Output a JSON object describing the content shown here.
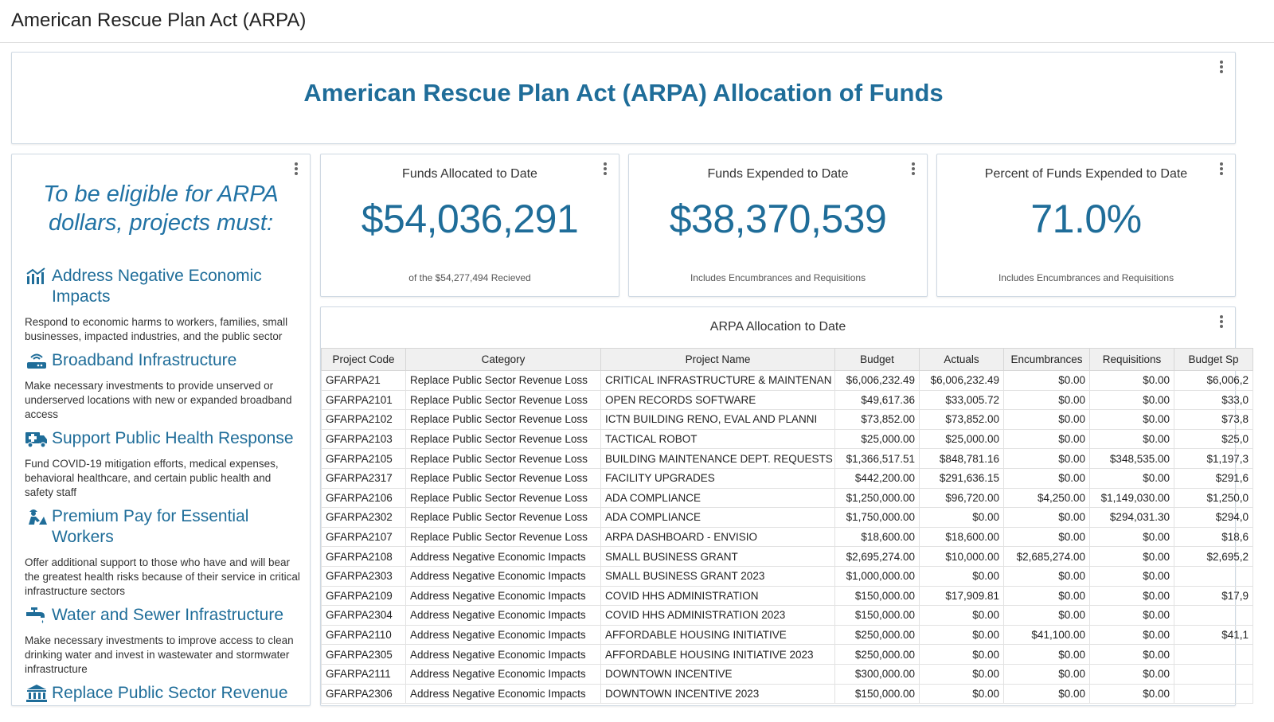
{
  "app_title": "American Rescue Plan Act (ARPA)",
  "banner": {
    "title": "American Rescue Plan Act (ARPA) Allocation of Funds"
  },
  "eligibility": {
    "heading": "To be eligible for ARPA dollars, projects must:",
    "items": [
      {
        "icon": "chart-bars-icon",
        "title": "Address Negative Economic Impacts",
        "desc": "Respond to economic harms to workers, families, small businesses, impacted industries, and the public sector"
      },
      {
        "icon": "router-icon",
        "title": "Broadband Infrastructure",
        "desc": "Make necessary investments to provide unserved or underserved locations with new or expanded broadband access"
      },
      {
        "icon": "ambulance-icon",
        "title": "Support Public Health Response",
        "desc": "Fund COVID-19 mitigation efforts, medical expenses, behavioral healthcare, and certain public health and safety staff"
      },
      {
        "icon": "worker-icon",
        "title": "Premium Pay for Essential Workers",
        "desc": "Offer additional support to those who have and will bear the greatest health risks because of their service in critical infrastructure sectors"
      },
      {
        "icon": "faucet-icon",
        "title": "Water and Sewer Infrastructure",
        "desc": "Make necessary investments to improve access to clean drinking water and invest in wastewater and stormwater infrastructure"
      },
      {
        "icon": "government-building-icon",
        "title": "Replace Public Sector Revenue",
        "desc": ""
      }
    ]
  },
  "kpis": [
    {
      "label": "Funds Allocated to Date",
      "value": "$54,036,291",
      "note": "of the $54,277,494 Recieved"
    },
    {
      "label": "Funds Expended to Date",
      "value": "$38,370,539",
      "note": "Includes Encumbrances and Requisitions"
    },
    {
      "label": "Percent of Funds Expended to Date",
      "value": "71.0%",
      "note": "Includes Encumbrances and Requisitions"
    }
  ],
  "allocation_table": {
    "title": "ARPA Allocation to Date",
    "columns": [
      "Project Code",
      "Category",
      "Project Name",
      "Budget",
      "Actuals",
      "Encumbrances",
      "Requisitions",
      "Budget Sp"
    ],
    "rows": [
      [
        "GFARPA21",
        "Replace Public Sector Revenue Loss",
        "CRITICAL INFRASTRUCTURE & MAINTENAN",
        "$6,006,232.49",
        "$6,006,232.49",
        "$0.00",
        "$0.00",
        "$6,006,2"
      ],
      [
        "GFARPA2101",
        "Replace Public Sector Revenue Loss",
        "OPEN RECORDS SOFTWARE",
        "$49,617.36",
        "$33,005.72",
        "$0.00",
        "$0.00",
        "$33,0"
      ],
      [
        "GFARPA2102",
        "Replace Public Sector Revenue Loss",
        "ICTN BUILDING RENO, EVAL AND PLANNI",
        "$73,852.00",
        "$73,852.00",
        "$0.00",
        "$0.00",
        "$73,8"
      ],
      [
        "GFARPA2103",
        "Replace Public Sector Revenue Loss",
        "TACTICAL ROBOT",
        "$25,000.00",
        "$25,000.00",
        "$0.00",
        "$0.00",
        "$25,0"
      ],
      [
        "GFARPA2105",
        "Replace Public Sector Revenue Loss",
        "BUILDING MAINTENANCE DEPT. REQUESTS",
        "$1,366,517.51",
        "$848,781.16",
        "$0.00",
        "$348,535.00",
        "$1,197,3"
      ],
      [
        "GFARPA2317",
        "Replace Public Sector Revenue Loss",
        "FACILITY UPGRADES",
        "$442,200.00",
        "$291,636.15",
        "$0.00",
        "$0.00",
        "$291,6"
      ],
      [
        "GFARPA2106",
        "Replace Public Sector Revenue Loss",
        "ADA COMPLIANCE",
        "$1,250,000.00",
        "$96,720.00",
        "$4,250.00",
        "$1,149,030.00",
        "$1,250,0"
      ],
      [
        "GFARPA2302",
        "Replace Public Sector Revenue Loss",
        "ADA COMPLIANCE",
        "$1,750,000.00",
        "$0.00",
        "$0.00",
        "$294,031.30",
        "$294,0"
      ],
      [
        "GFARPA2107",
        "Replace Public Sector Revenue Loss",
        "ARPA DASHBOARD - ENVISIO",
        "$18,600.00",
        "$18,600.00",
        "$0.00",
        "$0.00",
        "$18,6"
      ],
      [
        "GFARPA2108",
        "Address Negative Economic Impacts",
        "SMALL BUSINESS GRANT",
        "$2,695,274.00",
        "$10,000.00",
        "$2,685,274.00",
        "$0.00",
        "$2,695,2"
      ],
      [
        "GFARPA2303",
        "Address Negative Economic Impacts",
        "SMALL BUSINESS GRANT 2023",
        "$1,000,000.00",
        "$0.00",
        "$0.00",
        "$0.00",
        ""
      ],
      [
        "GFARPA2109",
        "Address Negative Economic Impacts",
        "COVID HHS ADMINISTRATION",
        "$150,000.00",
        "$17,909.81",
        "$0.00",
        "$0.00",
        "$17,9"
      ],
      [
        "GFARPA2304",
        "Address Negative Economic Impacts",
        "COVID HHS ADMINISTRATION 2023",
        "$150,000.00",
        "$0.00",
        "$0.00",
        "$0.00",
        ""
      ],
      [
        "GFARPA2110",
        "Address Negative Economic Impacts",
        "AFFORDABLE HOUSING INITIATIVE",
        "$250,000.00",
        "$0.00",
        "$41,100.00",
        "$0.00",
        "$41,1"
      ],
      [
        "GFARPA2305",
        "Address Negative Economic Impacts",
        "AFFORDABLE HOUSING INITIATIVE 2023",
        "$250,000.00",
        "$0.00",
        "$0.00",
        "$0.00",
        ""
      ],
      [
        "GFARPA2111",
        "Address Negative Economic Impacts",
        "DOWNTOWN INCENTIVE",
        "$300,000.00",
        "$0.00",
        "$0.00",
        "$0.00",
        ""
      ],
      [
        "GFARPA2306",
        "Address Negative Economic Impacts",
        "DOWNTOWN INCENTIVE 2023",
        "$150,000.00",
        "$0.00",
        "$0.00",
        "$0.00",
        ""
      ]
    ]
  },
  "colors": {
    "accent": "#1f6d99",
    "heading_blue": "#2273a5"
  }
}
